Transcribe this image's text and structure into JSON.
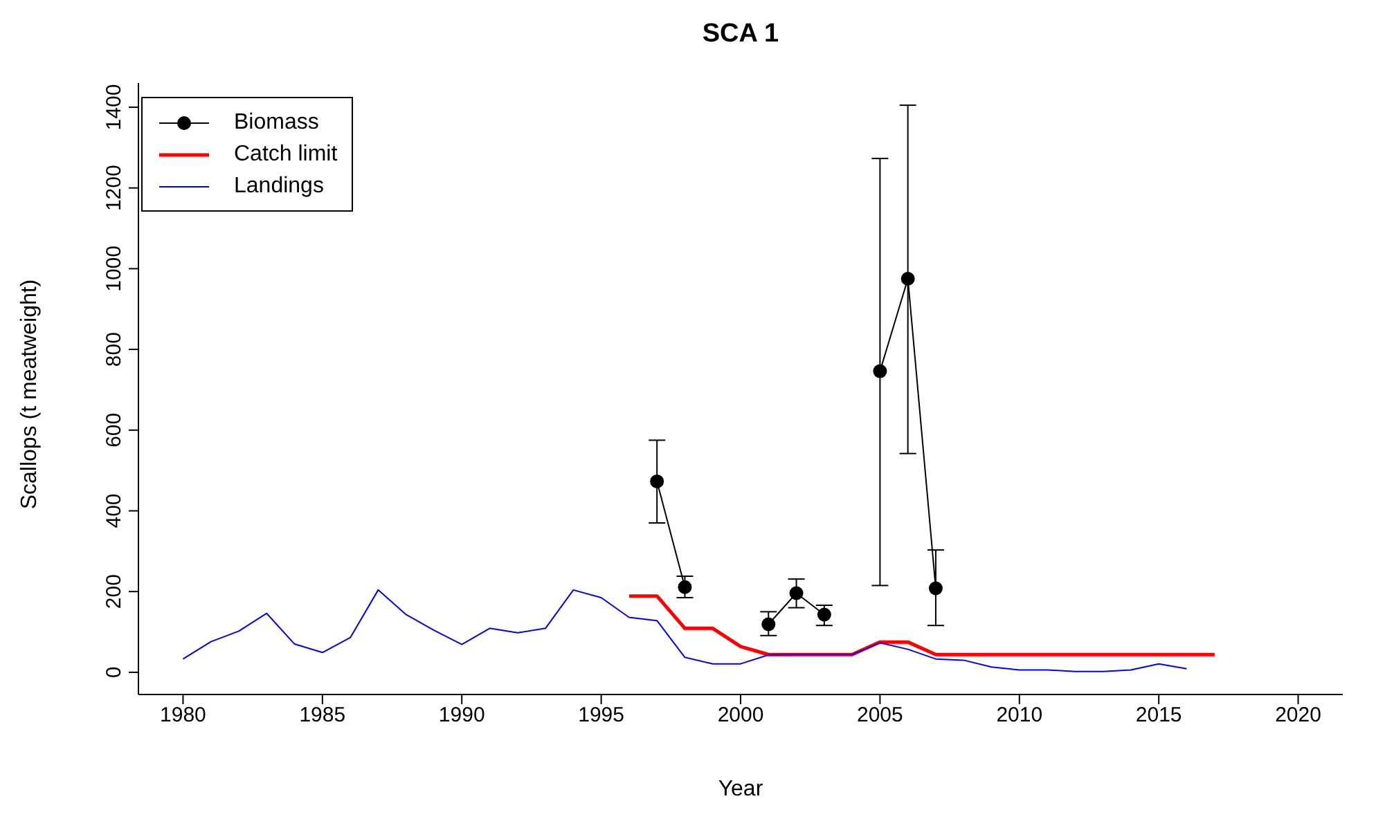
{
  "chart_data": {
    "type": "line",
    "title": "SCA 1",
    "xlabel": "Year",
    "ylabel": "Scallops (t meatweight)",
    "x": [
      1980,
      1981,
      1982,
      1983,
      1984,
      1985,
      1986,
      1987,
      1988,
      1989,
      1990,
      1991,
      1992,
      1993,
      1994,
      1995,
      1996,
      1997,
      1998,
      1999,
      2000,
      2001,
      2002,
      2003,
      2004,
      2005,
      2006,
      2007,
      2008,
      2009,
      2010,
      2011,
      2012,
      2013,
      2014,
      2015,
      2016,
      2017
    ],
    "series": [
      {
        "name": "Biomass",
        "color": "#000000",
        "marker": "circle",
        "values": [
          null,
          null,
          null,
          null,
          null,
          null,
          null,
          null,
          null,
          null,
          null,
          null,
          null,
          null,
          null,
          null,
          null,
          473,
          211,
          null,
          null,
          119,
          196,
          143,
          null,
          746,
          975,
          208,
          null,
          null,
          null,
          null,
          null,
          null,
          null,
          null,
          null,
          null
        ],
        "errors": [
          null,
          null,
          null,
          null,
          null,
          null,
          null,
          null,
          null,
          null,
          null,
          null,
          null,
          null,
          null,
          null,
          null,
          [
            370,
            575
          ],
          [
            185,
            238
          ],
          null,
          null,
          [
            91,
            150
          ],
          [
            160,
            231
          ],
          [
            116,
            166
          ],
          null,
          [
            215,
            1273
          ],
          [
            542,
            1405
          ],
          [
            116,
            303
          ],
          null,
          null,
          null,
          null,
          null,
          null,
          null,
          null,
          null,
          null
        ]
      },
      {
        "name": "Catch limit",
        "color": "#ff0000",
        "marker": "none",
        "values": [
          null,
          null,
          null,
          null,
          null,
          null,
          null,
          null,
          null,
          null,
          null,
          null,
          null,
          null,
          null,
          null,
          189,
          189,
          109,
          109,
          64,
          44,
          44,
          44,
          44,
          75,
          75,
          44,
          44,
          44,
          44,
          44,
          44,
          44,
          44,
          44,
          44,
          44
        ]
      },
      {
        "name": "Landings",
        "color": "#0000ff",
        "marker": "none",
        "values": [
          33,
          76,
          102,
          146,
          70,
          49,
          86,
          204,
          143,
          104,
          69,
          109,
          98,
          109,
          204,
          185,
          136,
          128,
          37,
          21,
          21,
          43,
          44,
          44,
          44,
          73,
          57,
          33,
          30,
          13,
          6,
          6,
          2,
          2,
          6,
          21,
          9,
          null
        ]
      }
    ],
    "xlim": [
      1978.4,
      2021.6
    ],
    "xticks": [
      1980,
      1985,
      1990,
      1995,
      2000,
      2005,
      2010,
      2015,
      2020
    ],
    "ylim": [
      -55,
      1460
    ],
    "yticks": [
      0,
      200,
      400,
      600,
      800,
      1000,
      1200,
      1400
    ],
    "grid": false,
    "legend": "top left"
  }
}
